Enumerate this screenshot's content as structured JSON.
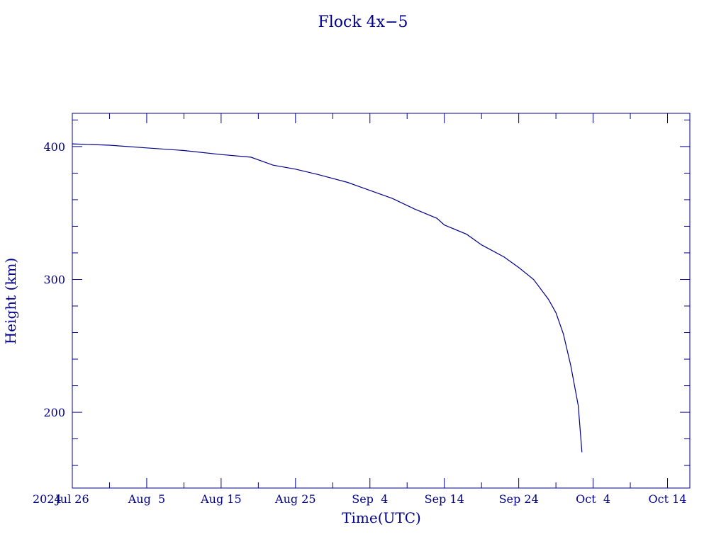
{
  "chart_data": {
    "type": "line",
    "title": "Flock 4x−5",
    "xlabel": "Time(UTC)",
    "ylabel": "Height (km)",
    "year_label": "2024",
    "xlim": [
      "2024-07-26",
      "2024-10-17"
    ],
    "ylim": [
      143,
      425
    ],
    "grid": false,
    "x_ticks": [
      {
        "date": "2024-07-26",
        "label": "Jul 26"
      },
      {
        "date": "2024-08-05",
        "label": "Aug  5"
      },
      {
        "date": "2024-08-15",
        "label": "Aug 15"
      },
      {
        "date": "2024-08-25",
        "label": "Aug 25"
      },
      {
        "date": "2024-09-04",
        "label": "Sep  4"
      },
      {
        "date": "2024-09-14",
        "label": "Sep 14"
      },
      {
        "date": "2024-09-24",
        "label": "Sep 24"
      },
      {
        "date": "2024-10-04",
        "label": "Oct  4"
      },
      {
        "date": "2024-10-14",
        "label": "Oct 14"
      }
    ],
    "y_ticks": [
      {
        "value": 200,
        "label": "200"
      },
      {
        "value": 300,
        "label": "300"
      },
      {
        "value": 400,
        "label": "400"
      }
    ],
    "series": [
      {
        "x": [
          "2024-07-26",
          "2024-07-31",
          "2024-08-05",
          "2024-08-10",
          "2024-08-15",
          "2024-08-19",
          "2024-08-22",
          "2024-08-25",
          "2024-08-28",
          "2024-09-01",
          "2024-09-04",
          "2024-09-07",
          "2024-09-10",
          "2024-09-13",
          "2024-09-14",
          "2024-09-17",
          "2024-09-19",
          "2024-09-22",
          "2024-09-24",
          "2024-09-26",
          "2024-09-28",
          "2024-09-29",
          "2024-09-30",
          "2024-10-01",
          "2024-10-02",
          "2024-10-02T12:00"
        ],
        "y": [
          402,
          401,
          399,
          397,
          394,
          392,
          386,
          383,
          379,
          373,
          367,
          361,
          353,
          346,
          341,
          334,
          326,
          317,
          309,
          300,
          285,
          275,
          259,
          235,
          205,
          170
        ]
      }
    ]
  }
}
